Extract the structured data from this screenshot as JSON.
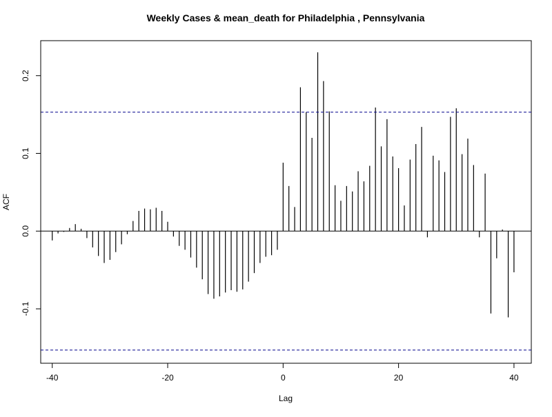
{
  "chart_data": {
    "type": "bar",
    "title": "Weekly Cases & mean_death for Philadelphia , Pennsylvania",
    "xlabel": "Lag",
    "ylabel": "ACF",
    "xlim": [
      -42,
      43
    ],
    "ylim": [
      -0.17,
      0.245
    ],
    "x_ticks": [
      -40,
      -20,
      0,
      20,
      40
    ],
    "x_tick_labels": [
      "-40",
      "-20",
      "0",
      "20",
      "40"
    ],
    "y_ticks": [
      -0.1,
      0.0,
      0.1,
      0.2
    ],
    "y_tick_labels": [
      "-0.1",
      "0.0",
      "0.1",
      "0.2"
    ],
    "confidence_bounds": [
      0.153,
      -0.153
    ],
    "zero_line": 0,
    "lags": [
      -40,
      -39,
      -38,
      -37,
      -36,
      -35,
      -34,
      -33,
      -32,
      -31,
      -30,
      -29,
      -28,
      -27,
      -26,
      -25,
      -24,
      -23,
      -22,
      -21,
      -20,
      -19,
      -18,
      -17,
      -16,
      -15,
      -14,
      -13,
      -12,
      -11,
      -10,
      -9,
      -8,
      -7,
      -6,
      -5,
      -4,
      -3,
      -2,
      -1,
      0,
      1,
      2,
      3,
      4,
      5,
      6,
      7,
      8,
      9,
      10,
      11,
      12,
      13,
      14,
      15,
      16,
      17,
      18,
      19,
      20,
      21,
      22,
      23,
      24,
      25,
      26,
      27,
      28,
      29,
      30,
      31,
      32,
      33,
      34,
      35,
      36,
      37,
      38,
      39,
      40
    ],
    "values": [
      -0.012,
      -0.003,
      -0.001,
      0.004,
      0.009,
      0.003,
      -0.009,
      -0.021,
      -0.032,
      -0.041,
      -0.037,
      -0.027,
      -0.017,
      -0.004,
      0.013,
      0.026,
      0.029,
      0.028,
      0.03,
      0.026,
      0.012,
      -0.007,
      -0.019,
      -0.024,
      -0.034,
      -0.047,
      -0.062,
      -0.081,
      -0.087,
      -0.084,
      -0.079,
      -0.076,
      -0.078,
      -0.075,
      -0.065,
      -0.054,
      -0.041,
      -0.033,
      -0.031,
      -0.024,
      0.088,
      0.058,
      0.031,
      0.185,
      0.153,
      0.12,
      0.23,
      0.193,
      0.154,
      0.059,
      0.039,
      0.058,
      0.051,
      0.077,
      0.064,
      0.084,
      0.159,
      0.109,
      0.144,
      0.096,
      0.081,
      0.033,
      0.092,
      0.112,
      0.134,
      -0.008,
      0.097,
      0.091,
      0.076,
      0.147,
      0.158,
      0.099,
      0.119,
      0.085,
      -0.008,
      0.074,
      -0.106,
      -0.035,
      0.002,
      -0.111,
      -0.053
    ],
    "colors": {
      "bars": "#000000",
      "bounds": "#00008b",
      "frame": "#000000"
    },
    "grid": false,
    "legend": "none"
  }
}
